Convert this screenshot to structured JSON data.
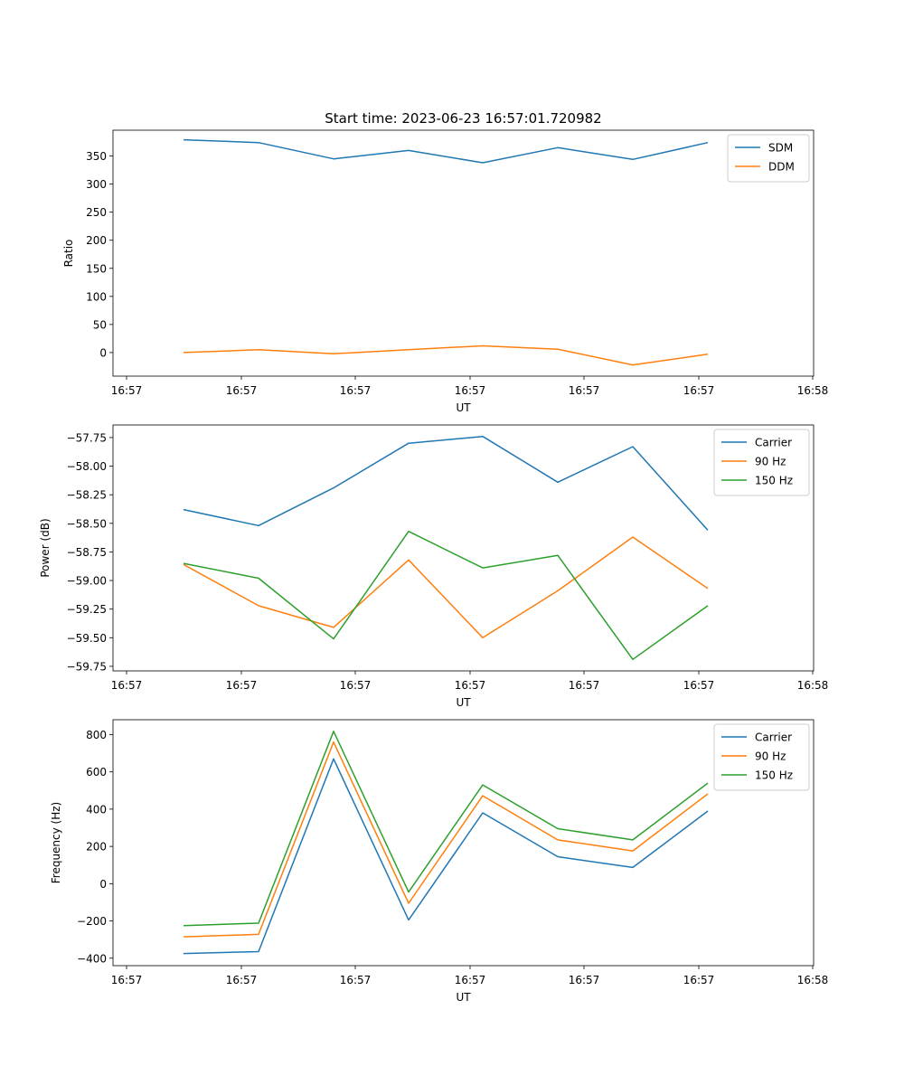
{
  "figure": {
    "title": "Start time: 2023-06-23 16:57:01.720982"
  },
  "chart_data": [
    {
      "type": "line",
      "title": "Start time: 2023-06-23 16:57:01.720982",
      "xlabel": "UT",
      "ylabel": "Ratio",
      "x_tick_labels": [
        "16:57",
        "16:57",
        "16:57",
        "16:57",
        "16:57",
        "16:57",
        "16:58"
      ],
      "y_ticks": [
        0,
        50,
        100,
        150,
        200,
        250,
        300,
        350
      ],
      "ylim": [
        -42,
        396
      ],
      "grid": false,
      "legend_position": "upper right",
      "series": [
        {
          "name": "SDM",
          "color": "#1f77b4",
          "values": [
            379,
            374,
            345,
            360,
            338,
            365,
            344,
            374
          ]
        },
        {
          "name": "DDM",
          "color": "#ff7f0e",
          "values": [
            0,
            5,
            -2,
            5,
            12,
            6,
            -22,
            -3
          ]
        }
      ]
    },
    {
      "type": "line",
      "xlabel": "UT",
      "ylabel": "Power (dB)",
      "x_tick_labels": [
        "16:57",
        "16:57",
        "16:57",
        "16:57",
        "16:57",
        "16:57",
        "16:58"
      ],
      "y_ticks": [
        -57.75,
        -58.0,
        -58.25,
        -58.5,
        -58.75,
        -59.0,
        -59.25,
        -59.5,
        -59.75
      ],
      "y_tick_labels": [
        "−57.75",
        "−58.00",
        "−58.25",
        "−58.50",
        "−58.75",
        "−59.00",
        "−59.25",
        "−59.50",
        "−59.75"
      ],
      "ylim": [
        -59.79,
        -57.64
      ],
      "grid": false,
      "legend_position": "upper right",
      "series": [
        {
          "name": "Carrier",
          "color": "#1f77b4",
          "values": [
            -58.38,
            -58.52,
            -58.19,
            -57.8,
            -57.74,
            -58.14,
            -57.83,
            -58.56
          ]
        },
        {
          "name": "90 Hz",
          "color": "#ff7f0e",
          "values": [
            -58.86,
            -59.22,
            -59.41,
            -58.82,
            -59.5,
            -59.09,
            -58.62,
            -59.07
          ]
        },
        {
          "name": "150 Hz",
          "color": "#2ca02c",
          "values": [
            -58.85,
            -58.98,
            -59.51,
            -58.57,
            -58.89,
            -58.78,
            -59.69,
            -59.22
          ]
        }
      ]
    },
    {
      "type": "line",
      "xlabel": "UT",
      "ylabel": "Frequency (Hz)",
      "x_tick_labels": [
        "16:57",
        "16:57",
        "16:57",
        "16:57",
        "16:57",
        "16:57",
        "16:58"
      ],
      "y_ticks": [
        800,
        600,
        400,
        200,
        0,
        -200,
        -400
      ],
      "y_tick_labels": [
        "800",
        "600",
        "400",
        "200",
        "0",
        "−200",
        "−400"
      ],
      "ylim": [
        -440,
        880
      ],
      "grid": false,
      "legend_position": "upper right",
      "series": [
        {
          "name": "Carrier",
          "color": "#1f77b4",
          "values": [
            -375,
            -365,
            670,
            -195,
            380,
            145,
            87,
            390
          ]
        },
        {
          "name": "90 Hz",
          "color": "#ff7f0e",
          "values": [
            -285,
            -272,
            760,
            -105,
            472,
            235,
            176,
            482
          ]
        },
        {
          "name": "150 Hz",
          "color": "#2ca02c",
          "values": [
            -225,
            -212,
            818,
            -45,
            530,
            295,
            235,
            540
          ]
        }
      ]
    }
  ]
}
